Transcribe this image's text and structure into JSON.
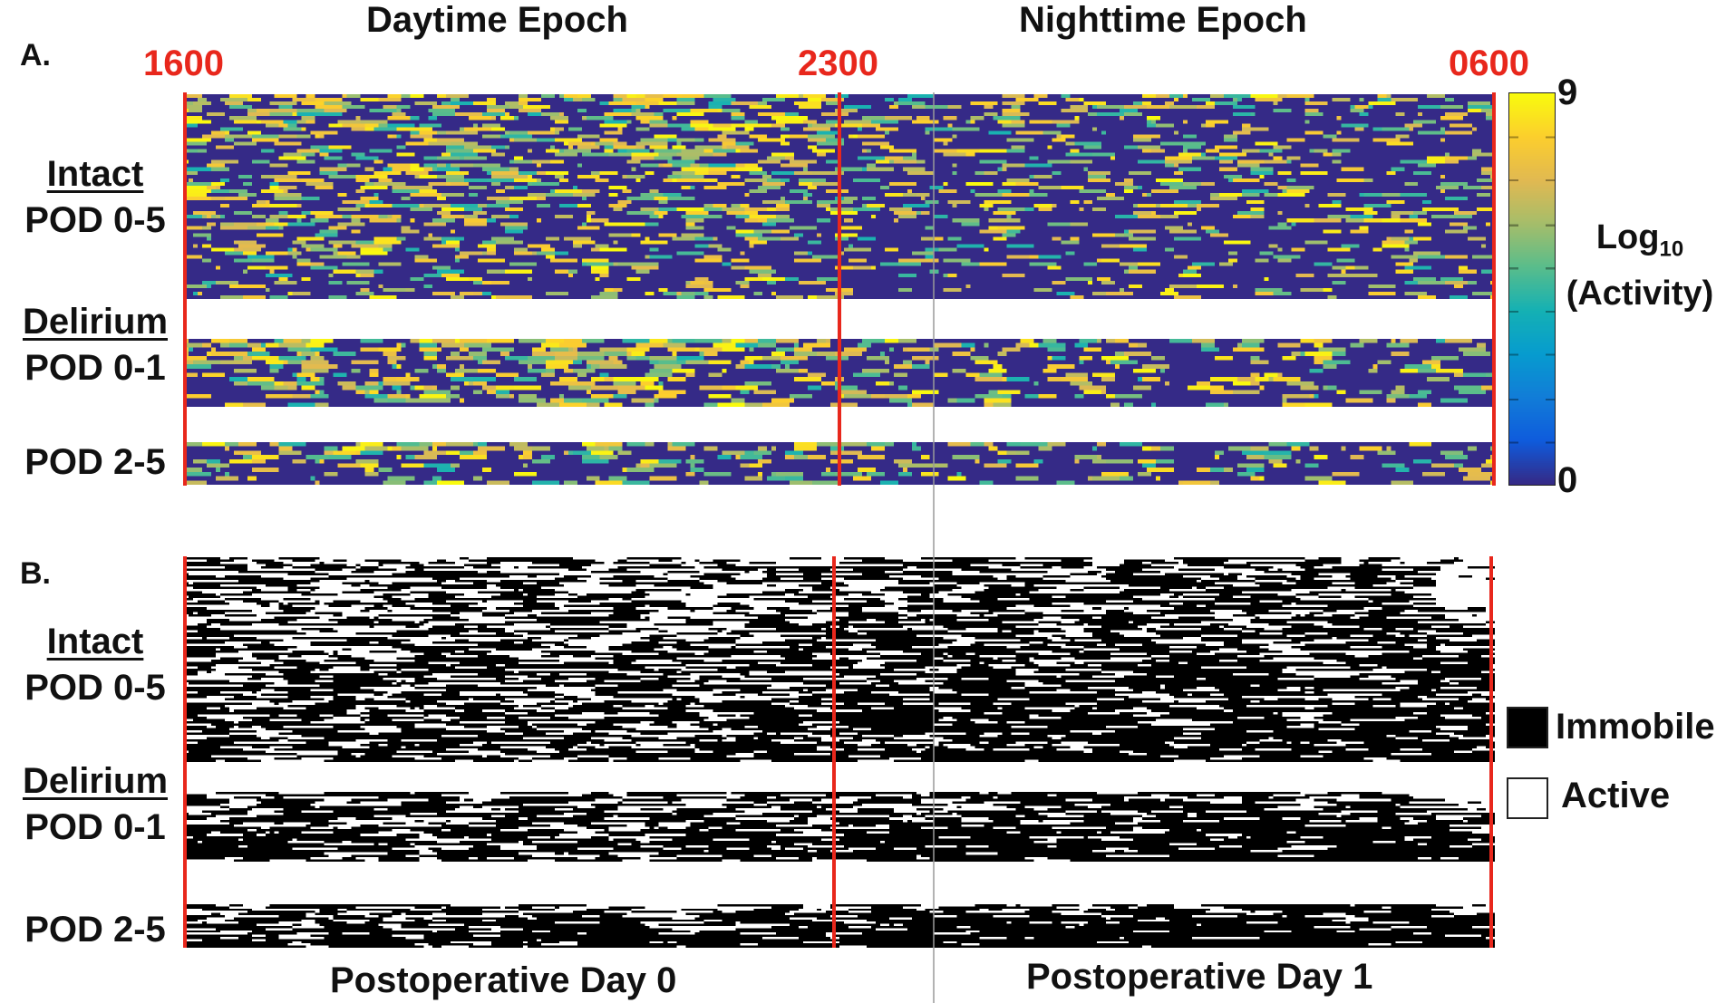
{
  "panel_a": {
    "letter": "A.",
    "epochs": [
      "Daytime Epoch",
      "Nighttime Epoch"
    ],
    "times": [
      "1600",
      "2300",
      "0600"
    ],
    "groups": [
      {
        "line1": "Intact",
        "line2": "POD 0-5"
      },
      {
        "line1": "Delirium",
        "line2": "POD 0-1"
      },
      {
        "line1": "",
        "line2": "POD 2-5"
      }
    ],
    "colorbar": {
      "max_label": "9",
      "min_label": "0",
      "label_main": "Log",
      "label_sub": "10",
      "label_line2": "(Activity)"
    }
  },
  "panel_b": {
    "letter": "B.",
    "groups": [
      {
        "line1": "Intact",
        "line2": "POD 0-5"
      },
      {
        "line1": "Delirium",
        "line2": "POD 0-1"
      },
      {
        "line1": "",
        "line2": "POD 2-5"
      }
    ],
    "legend": [
      {
        "label": "Immobile",
        "color": "#000000"
      },
      {
        "label": "Active",
        "color": "#ffffff"
      }
    ]
  },
  "footer": {
    "days": [
      "Postoperative Day 0",
      "Postoperative Day 1"
    ]
  },
  "colors": {
    "marker": "#e8271c",
    "low": "#352a87",
    "high": "#f9fb0e"
  },
  "chart_data": [
    {
      "type": "heatmap",
      "title": "",
      "x_ticks": [
        "1600",
        "2300",
        "0600"
      ],
      "epochs": [
        "Daytime Epoch",
        "Nighttime Epoch"
      ],
      "row_groups": [
        "Intact POD 0-5",
        "Delirium POD 0-1",
        "Delirium POD 2-5"
      ],
      "value_label": "Log10 (Activity)",
      "value_range": [
        0,
        9
      ],
      "colormap": "parula"
    },
    {
      "type": "heatmap",
      "title": "",
      "x_ticks": [
        "1600",
        "2300",
        "0600"
      ],
      "row_groups": [
        "Intact POD 0-5",
        "Delirium POD 0-1",
        "Delirium POD 2-5"
      ],
      "categories": [
        "Immobile",
        "Active"
      ],
      "x_labels": [
        "Postoperative Day 0",
        "Postoperative Day 1"
      ]
    }
  ]
}
